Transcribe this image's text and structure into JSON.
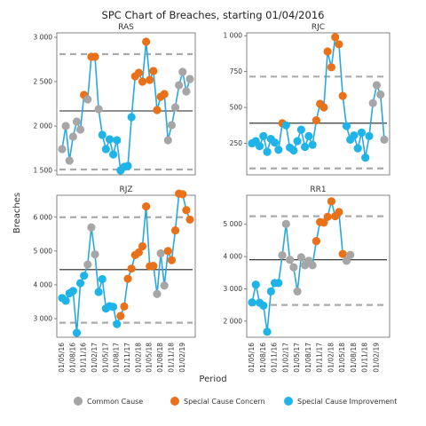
{
  "chart_data": {
    "type": "line",
    "title": "SPC Chart of Breaches, starting 01/04/2016",
    "xlabel": "Period",
    "ylabel": "Breaches",
    "categories_labels": [
      "01/05/16",
      "01/08/16",
      "01/11/16",
      "01/02/17",
      "01/05/17",
      "01/08/17",
      "01/11/17",
      "01/02/18",
      "01/05/18",
      "01/08/18",
      "01/11/18",
      "01/02/19"
    ],
    "legend": [
      {
        "name": "Common Cause",
        "color": "#a6a6a6"
      },
      {
        "name": "Special Cause Concern",
        "color": "#e8711a"
      },
      {
        "name": "Special Cause Improvement",
        "color": "#1eb4e8"
      }
    ],
    "colors": {
      "common": "#a6a6a6",
      "concern": "#e8711a",
      "improvement": "#1eb4e8",
      "line": "#29a8e0"
    },
    "panels": [
      {
        "name": "RAS",
        "ylim": [
          1450,
          3050
        ],
        "yticks": [
          1500,
          2000,
          2500,
          3000
        ],
        "ytick_labels": [
          "1 500",
          "2 000",
          "2 500",
          "3 000"
        ],
        "mean": 2170,
        "ucl": 2810,
        "lcl": 1510,
        "values": [
          1740,
          2000,
          1610,
          1880,
          2050,
          1960,
          2350,
          2300,
          2780,
          2780,
          2190,
          1900,
          1740,
          1850,
          1680,
          1840,
          1500,
          1540,
          1550,
          2100,
          2560,
          2600,
          2500,
          2950,
          2520,
          2620,
          2180,
          2330,
          2360,
          1840,
          2010,
          2210,
          2460,
          2610,
          2390,
          2530
        ],
        "types": [
          "common",
          "common",
          "common",
          "common",
          "common",
          "common",
          "concern",
          "common",
          "concern",
          "concern",
          "common",
          "improvement",
          "improvement",
          "improvement",
          "improvement",
          "improvement",
          "improvement",
          "improvement",
          "improvement",
          "improvement",
          "concern",
          "concern",
          "concern",
          "concern",
          "concern",
          "concern",
          "concern",
          "concern",
          "concern",
          "common",
          "common",
          "common",
          "common",
          "common",
          "common",
          "common"
        ]
      },
      {
        "name": "RJC",
        "ylim": [
          30,
          1020
        ],
        "yticks": [
          250,
          500,
          750,
          1000
        ],
        "ytick_labels": [
          "250",
          "500",
          "750",
          "1 000"
        ],
        "mean": 390,
        "ucl": 715,
        "lcl": 75,
        "values": [
          250,
          265,
          230,
          300,
          190,
          280,
          255,
          205,
          390,
          375,
          220,
          200,
          265,
          345,
          225,
          300,
          240,
          410,
          525,
          500,
          890,
          780,
          990,
          940,
          580,
          370,
          275,
          305,
          215,
          325,
          150,
          300,
          530,
          655,
          590,
          275
        ],
        "types": [
          "improvement",
          "improvement",
          "improvement",
          "improvement",
          "improvement",
          "improvement",
          "improvement",
          "improvement",
          "concern",
          "improvement",
          "improvement",
          "improvement",
          "improvement",
          "improvement",
          "improvement",
          "improvement",
          "improvement",
          "concern",
          "concern",
          "concern",
          "concern",
          "concern",
          "concern",
          "concern",
          "concern",
          "improvement",
          "improvement",
          "improvement",
          "improvement",
          "improvement",
          "improvement",
          "improvement",
          "common",
          "common",
          "common",
          "common"
        ]
      },
      {
        "name": "RJZ",
        "ylim": [
          2450,
          6650
        ],
        "yticks": [
          3000,
          4000,
          5000,
          6000
        ],
        "ytick_labels": [
          "3 000",
          "4 000",
          "5 000",
          "6 000"
        ],
        "mean": 4450,
        "ucl": 6000,
        "lcl": 2880,
        "values": [
          3610,
          3530,
          3750,
          3820,
          2580,
          4050,
          4270,
          4600,
          5700,
          4900,
          3790,
          4170,
          3300,
          3370,
          3350,
          2840,
          3080,
          3360,
          4180,
          4480,
          4880,
          4960,
          5140,
          6320,
          4550,
          4560,
          3730,
          4930,
          3980,
          5000,
          4730,
          5610,
          6700,
          6680,
          6210,
          5930
        ],
        "types": [
          "improvement",
          "improvement",
          "improvement",
          "improvement",
          "improvement",
          "improvement",
          "improvement",
          "common",
          "common",
          "common",
          "improvement",
          "improvement",
          "improvement",
          "improvement",
          "improvement",
          "improvement",
          "concern",
          "concern",
          "concern",
          "concern",
          "concern",
          "concern",
          "concern",
          "concern",
          "concern",
          "concern",
          "common",
          "common",
          "common",
          "concern",
          "concern",
          "concern",
          "concern",
          "concern",
          "concern",
          "concern"
        ]
      },
      {
        "name": "RR1",
        "ylim": [
          1500,
          5900
        ],
        "yticks": [
          2000,
          3000,
          4000,
          5000
        ],
        "ytick_labels": [
          "2 000",
          "3 000",
          "4 000",
          "5 000"
        ],
        "mean": 3900,
        "ucl": 5250,
        "lcl": 2500,
        "values": [
          2580,
          3130,
          2570,
          2480,
          1670,
          2920,
          3180,
          3180,
          4040,
          5010,
          3900,
          3670,
          2920,
          3980,
          3730,
          3870,
          3730,
          4480,
          5070,
          5050,
          5230,
          5710,
          5250,
          5380,
          4080,
          3870,
          4050
        ],
        "types": [
          "improvement",
          "improvement",
          "improvement",
          "improvement",
          "improvement",
          "improvement",
          "improvement",
          "improvement",
          "common",
          "common",
          "common",
          "common",
          "common",
          "common",
          "common",
          "common",
          "common",
          "concern",
          "concern",
          "concern",
          "concern",
          "concern",
          "concern",
          "concern",
          "concern",
          "common",
          "common"
        ]
      }
    ]
  }
}
